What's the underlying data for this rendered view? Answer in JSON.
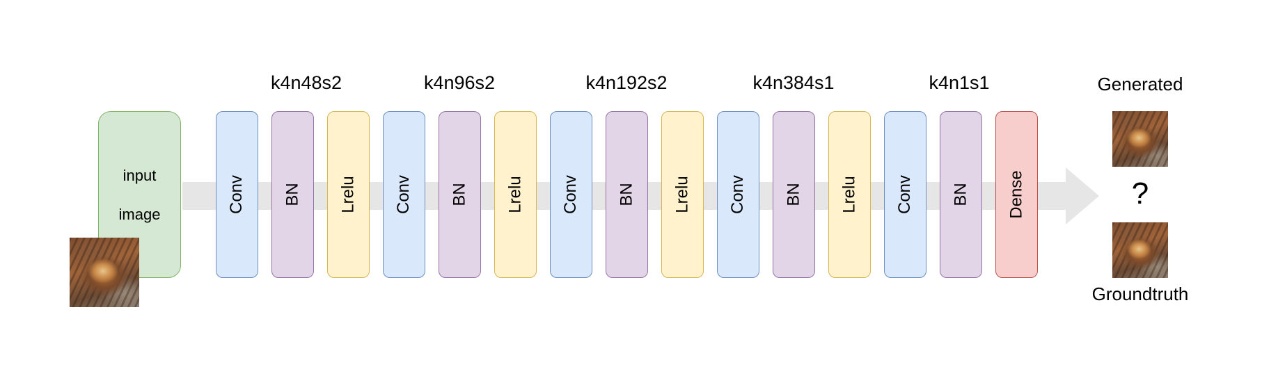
{
  "input_block": {
    "line1": "input",
    "line2": "image"
  },
  "group_labels": [
    "k4n48s2",
    "k4n96s2",
    "k4n192s2",
    "k4n384s1",
    "k4n1s1"
  ],
  "layers": [
    {
      "label": "Conv",
      "kind": "conv"
    },
    {
      "label": "BN",
      "kind": "bn"
    },
    {
      "label": "Lrelu",
      "kind": "lrelu"
    },
    {
      "label": "Conv",
      "kind": "conv"
    },
    {
      "label": "BN",
      "kind": "bn"
    },
    {
      "label": "Lrelu",
      "kind": "lrelu"
    },
    {
      "label": "Conv",
      "kind": "conv"
    },
    {
      "label": "BN",
      "kind": "bn"
    },
    {
      "label": "Lrelu",
      "kind": "lrelu"
    },
    {
      "label": "Conv",
      "kind": "conv"
    },
    {
      "label": "BN",
      "kind": "bn"
    },
    {
      "label": "Lrelu",
      "kind": "lrelu"
    },
    {
      "label": "Conv",
      "kind": "conv"
    },
    {
      "label": "BN",
      "kind": "bn"
    },
    {
      "label": "Dense",
      "kind": "dense"
    }
  ],
  "outputs": {
    "generated_label": "Generated",
    "groundtruth_label": "Groundtruth",
    "question_mark": "?"
  },
  "colors": {
    "conv_fill": "#dae8fc",
    "bn_fill": "#e1d5e7",
    "lrelu_fill": "#fff2cc",
    "dense_fill": "#f8cecc",
    "input_fill": "#d5e8d4",
    "arrow": "#e6e6e6"
  }
}
